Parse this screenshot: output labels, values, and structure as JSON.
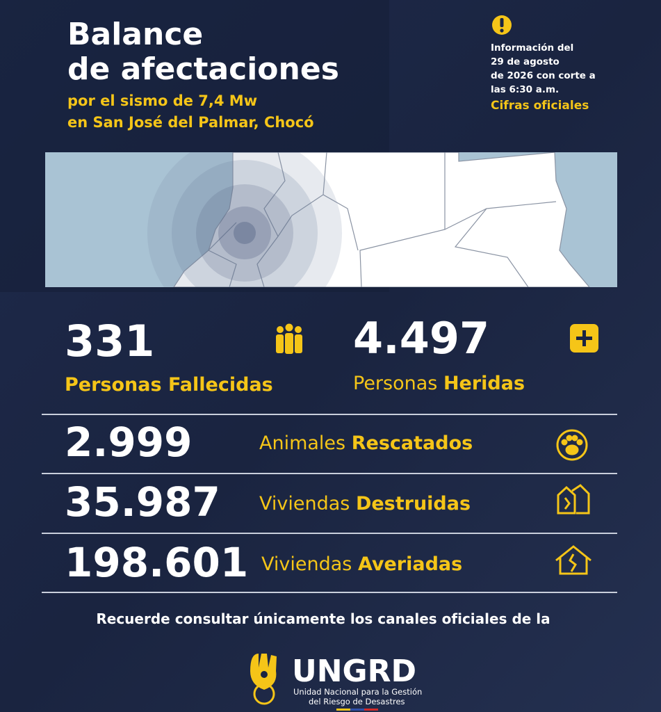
{
  "header": {
    "title": [
      "Balance",
      "de afectaciones"
    ],
    "subtitle": [
      "por el sismo de 7,4 Mw",
      "en San José del Palmar, Chocó"
    ]
  },
  "notice": {
    "text": [
      "Información del",
      "29 de agosto",
      "de 2026 con corte a",
      "las 6:30 a.m."
    ],
    "link": "Cifras oficiales"
  },
  "highlights": [
    {
      "number": "331",
      "label": "Personas Fallecidas"
    },
    {
      "number": "4.497",
      "label_light": "Personas",
      "label_bold": "Heridas"
    }
  ],
  "rows": [
    {
      "number": "2.999",
      "label_light": "Animales",
      "label_bold": "Rescatados"
    },
    {
      "number": "35.987",
      "label_light": "Viviendas",
      "label_bold": "Destruidas"
    },
    {
      "number": "198.601",
      "label_light": "Viviendas",
      "label_bold": "Averiadas"
    }
  ],
  "footer": {
    "text": "Recuerde consultar únicamente los canales oficiales de la",
    "logo": {
      "name": "UNGRD",
      "tagline": [
        "Unidad Nacional para la Gestión",
        "del Riesgo de Desastres"
      ]
    }
  }
}
